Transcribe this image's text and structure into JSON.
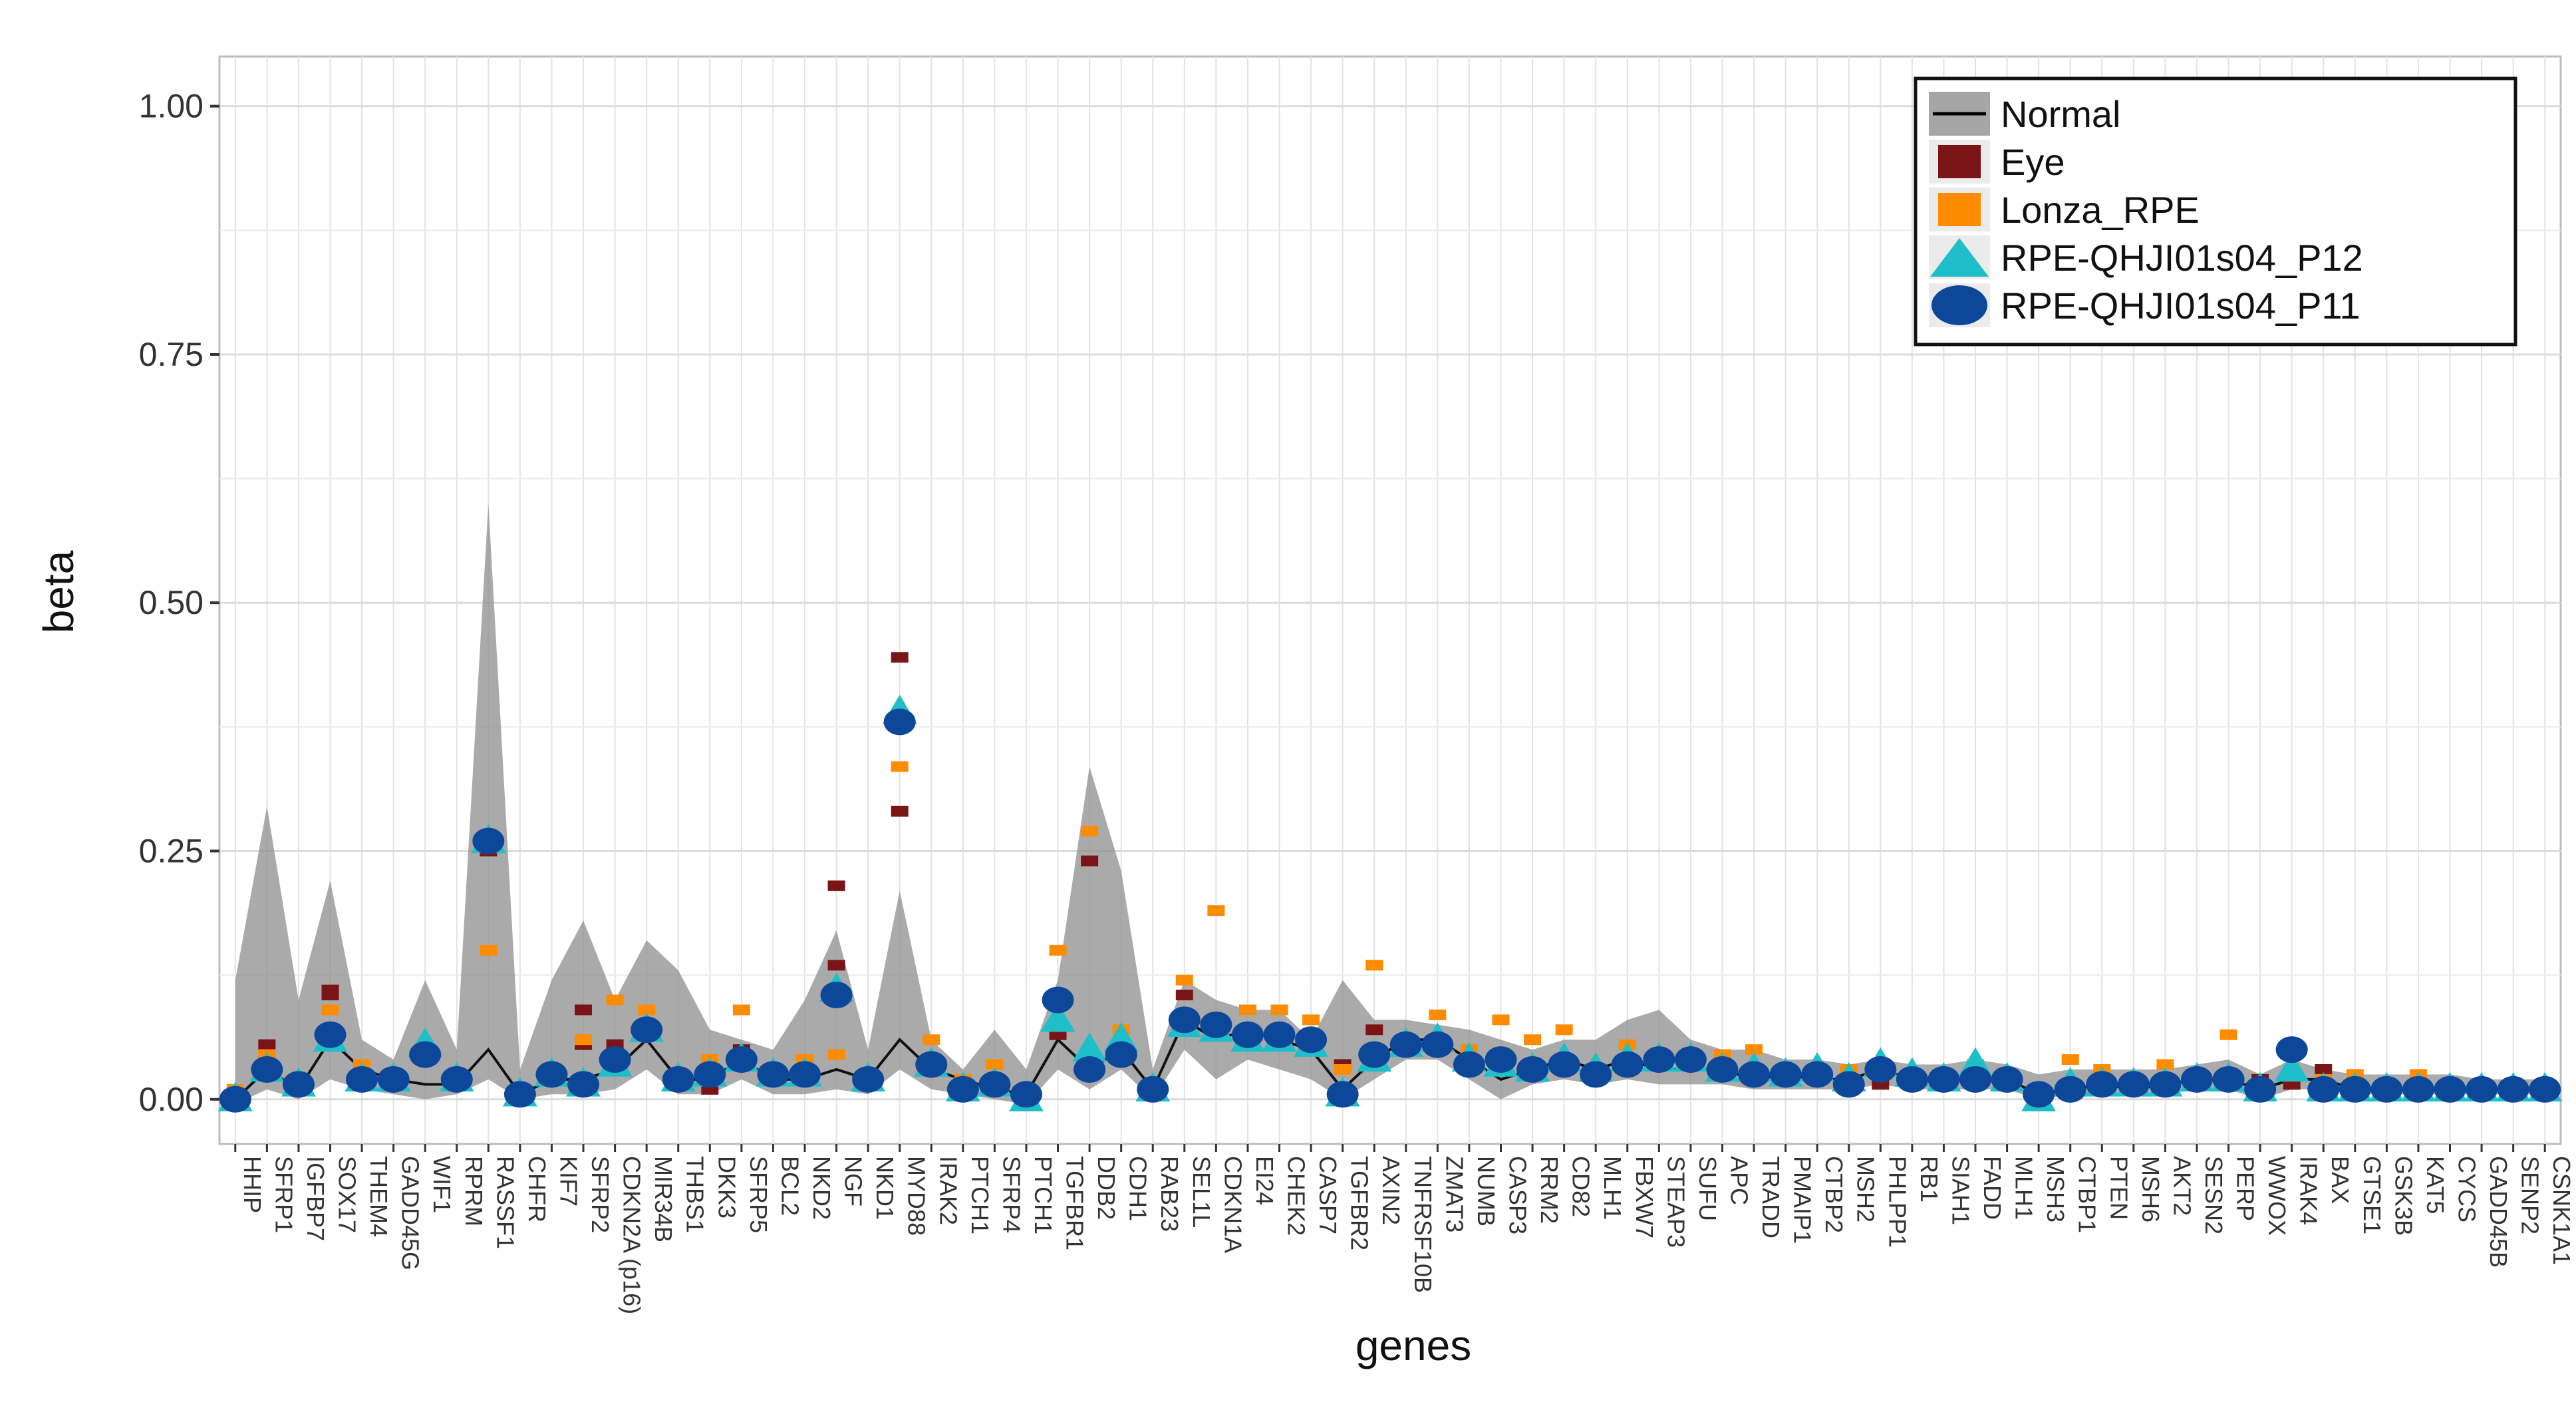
{
  "chart_data": {
    "type": "scatter",
    "title": "",
    "xlabel": "genes",
    "ylabel": "beta",
    "ylim": [
      -0.045,
      1.05
    ],
    "yticks": [
      0.0,
      0.25,
      0.5,
      0.75,
      1.0
    ],
    "ytick_labels": [
      "0.00",
      "0.25",
      "0.50",
      "0.75",
      "1.00"
    ],
    "grid": true,
    "legend_position": "top-right",
    "categories": [
      "HHIP",
      "SFRP1",
      "IGFBP7",
      "SOX17",
      "THEM4",
      "GADD45G",
      "WIF1",
      "RPRM",
      "RASSF1",
      "CHFR",
      "KIF7",
      "SFRP2",
      "CDKN2A (p16)",
      "MIR34B",
      "THBS1",
      "DKK3",
      "SFRP5",
      "BCL2",
      "NKD2",
      "NGF",
      "NKD1",
      "MYD88",
      "IRAK2",
      "PTCH1",
      "SFRP4",
      "PTCH1",
      "TGFBR1",
      "DDB2",
      "CDH1",
      "RAB23",
      "SEL1L",
      "CDKN1A",
      "EI24",
      "CHEK2",
      "CASP7",
      "TGFBR2",
      "AXIN2",
      "TNFRSF10B",
      "ZMAT3",
      "NUMB",
      "CASP3",
      "RRM2",
      "CD82",
      "MLH1",
      "FBXW7",
      "STEAP3",
      "SUFU",
      "APC",
      "TRADD",
      "PMAIP1",
      "CTBP2",
      "MSH2",
      "PHLPP1",
      "RB1",
      "SIAH1",
      "FADD",
      "MLH1",
      "MSH3",
      "CTBP1",
      "PTEN",
      "MSH6",
      "AKT2",
      "SESN2",
      "PERP",
      "WWOX",
      "IRAK4",
      "BAX",
      "GTSE1",
      "GSK3B",
      "KAT5",
      "CYCS",
      "GADD45B",
      "SENP2",
      "CSNK1A1"
    ],
    "normal_band": {
      "name": "Normal",
      "line": [
        0.0,
        0.03,
        0.01,
        0.06,
        0.03,
        0.02,
        0.015,
        0.015,
        0.05,
        0.005,
        0.02,
        0.02,
        0.03,
        0.06,
        0.02,
        0.02,
        0.04,
        0.02,
        0.02,
        0.03,
        0.02,
        0.06,
        0.03,
        0.02,
        0.01,
        0.005,
        0.06,
        0.03,
        0.05,
        0.01,
        0.08,
        0.06,
        0.07,
        0.06,
        0.05,
        0.01,
        0.04,
        0.06,
        0.06,
        0.04,
        0.02,
        0.03,
        0.04,
        0.03,
        0.04,
        0.03,
        0.03,
        0.03,
        0.02,
        0.025,
        0.02,
        0.02,
        0.03,
        0.02,
        0.02,
        0.02,
        0.02,
        0.005,
        0.01,
        0.015,
        0.01,
        0.015,
        0.02,
        0.02,
        0.01,
        0.02,
        0.02,
        0.01,
        0.01,
        0.01,
        0.01,
        0.01,
        0.01,
        0.01
      ],
      "lower": [
        -0.005,
        0.01,
        0.0,
        0.02,
        0.01,
        0.005,
        0.0,
        0.005,
        0.02,
        0.0,
        0.005,
        0.005,
        0.01,
        0.03,
        0.005,
        0.005,
        0.02,
        0.005,
        0.005,
        0.01,
        0.005,
        0.03,
        0.01,
        0.005,
        0.0,
        -0.005,
        0.03,
        0.01,
        0.03,
        0.0,
        0.05,
        0.02,
        0.04,
        0.03,
        0.02,
        0.0,
        0.02,
        0.04,
        0.04,
        0.02,
        0.0,
        0.015,
        0.02,
        0.015,
        0.02,
        0.015,
        0.015,
        0.015,
        0.01,
        0.01,
        0.01,
        0.01,
        0.015,
        0.01,
        0.01,
        0.01,
        0.01,
        0.0,
        0.005,
        0.005,
        0.005,
        0.005,
        0.01,
        0.01,
        0.0,
        0.01,
        0.01,
        0.005,
        0.005,
        0.005,
        0.005,
        0.005,
        0.005,
        0.005
      ],
      "upper": [
        0.12,
        0.295,
        0.1,
        0.22,
        0.06,
        0.04,
        0.12,
        0.05,
        0.6,
        0.03,
        0.12,
        0.18,
        0.1,
        0.16,
        0.13,
        0.07,
        0.06,
        0.05,
        0.1,
        0.17,
        0.05,
        0.21,
        0.06,
        0.03,
        0.07,
        0.03,
        0.12,
        0.335,
        0.23,
        0.03,
        0.12,
        0.1,
        0.09,
        0.09,
        0.06,
        0.12,
        0.08,
        0.08,
        0.075,
        0.07,
        0.06,
        0.05,
        0.06,
        0.06,
        0.08,
        0.09,
        0.06,
        0.05,
        0.05,
        0.04,
        0.04,
        0.035,
        0.04,
        0.035,
        0.035,
        0.04,
        0.035,
        0.025,
        0.03,
        0.03,
        0.03,
        0.03,
        0.035,
        0.04,
        0.025,
        0.04,
        0.03,
        0.025,
        0.025,
        0.025,
        0.025,
        0.02,
        0.02,
        0.02
      ]
    },
    "series": [
      {
        "name": "Eye",
        "shape": "square",
        "color": "#7b1416",
        "points": [
          [
            1,
            0.055
          ],
          [
            3,
            0.11
          ],
          [
            3,
            0.105
          ],
          [
            8,
            0.265
          ],
          [
            8,
            0.25
          ],
          [
            11,
            0.09
          ],
          [
            11,
            0.055
          ],
          [
            12,
            0.055
          ],
          [
            15,
            0.01
          ],
          [
            16,
            0.05
          ],
          [
            19,
            0.215
          ],
          [
            19,
            0.135
          ],
          [
            21,
            0.445
          ],
          [
            21,
            0.29
          ],
          [
            26,
            0.065
          ],
          [
            27,
            0.24
          ],
          [
            30,
            0.105
          ],
          [
            35,
            0.035
          ],
          [
            36,
            0.07
          ],
          [
            45,
            0.035
          ],
          [
            52,
            0.015
          ],
          [
            64,
            0.02
          ],
          [
            65,
            0.015
          ],
          [
            66,
            0.03
          ]
        ]
      },
      {
        "name": "Lonza_RPE",
        "shape": "square",
        "color": "#ff8c00",
        "points": [
          [
            0,
            0.01
          ],
          [
            1,
            0.045
          ],
          [
            2,
            0.01
          ],
          [
            3,
            0.09
          ],
          [
            4,
            0.035
          ],
          [
            8,
            0.15
          ],
          [
            11,
            0.06
          ],
          [
            12,
            0.1
          ],
          [
            13,
            0.09
          ],
          [
            15,
            0.04
          ],
          [
            16,
            0.09
          ],
          [
            18,
            0.04
          ],
          [
            19,
            0.045
          ],
          [
            21,
            0.335
          ],
          [
            22,
            0.06
          ],
          [
            23,
            0.02
          ],
          [
            24,
            0.035
          ],
          [
            26,
            0.15
          ],
          [
            27,
            0.27
          ],
          [
            28,
            0.07
          ],
          [
            30,
            0.12
          ],
          [
            31,
            0.19
          ],
          [
            32,
            0.09
          ],
          [
            33,
            0.09
          ],
          [
            34,
            0.08
          ],
          [
            35,
            0.03
          ],
          [
            36,
            0.135
          ],
          [
            38,
            0.085
          ],
          [
            39,
            0.05
          ],
          [
            40,
            0.08
          ],
          [
            41,
            0.06
          ],
          [
            42,
            0.07
          ],
          [
            44,
            0.055
          ],
          [
            47,
            0.045
          ],
          [
            48,
            0.05
          ],
          [
            51,
            0.03
          ],
          [
            55,
            0.035
          ],
          [
            58,
            0.04
          ],
          [
            59,
            0.03
          ],
          [
            61,
            0.035
          ],
          [
            63,
            0.065
          ],
          [
            66,
            0.02
          ],
          [
            67,
            0.025
          ],
          [
            69,
            0.025
          ],
          [
            71,
            0.015
          ],
          [
            72,
            0.015
          ]
        ]
      },
      {
        "name": "RPE-QHJI01s04_P12",
        "shape": "triangle",
        "color": "#1ebfc8",
        "points": [
          [
            0,
            0.0
          ],
          [
            1,
            0.03
          ],
          [
            2,
            0.015
          ],
          [
            3,
            0.06
          ],
          [
            4,
            0.02
          ],
          [
            5,
            0.02
          ],
          [
            6,
            0.055
          ],
          [
            7,
            0.02
          ],
          [
            8,
            0.26
          ],
          [
            9,
            0.005
          ],
          [
            10,
            0.025
          ],
          [
            11,
            0.015
          ],
          [
            12,
            0.035
          ],
          [
            13,
            0.07
          ],
          [
            14,
            0.02
          ],
          [
            15,
            0.025
          ],
          [
            16,
            0.04
          ],
          [
            17,
            0.025
          ],
          [
            18,
            0.025
          ],
          [
            19,
            0.11
          ],
          [
            20,
            0.02
          ],
          [
            21,
            0.39
          ],
          [
            22,
            0.035
          ],
          [
            23,
            0.01
          ],
          [
            24,
            0.015
          ],
          [
            25,
            0.0
          ],
          [
            26,
            0.08
          ],
          [
            27,
            0.05
          ],
          [
            28,
            0.06
          ],
          [
            29,
            0.01
          ],
          [
            30,
            0.075
          ],
          [
            31,
            0.07
          ],
          [
            32,
            0.06
          ],
          [
            33,
            0.06
          ],
          [
            34,
            0.055
          ],
          [
            35,
            0.005
          ],
          [
            36,
            0.04
          ],
          [
            37,
            0.055
          ],
          [
            38,
            0.06
          ],
          [
            39,
            0.04
          ],
          [
            40,
            0.035
          ],
          [
            41,
            0.03
          ],
          [
            42,
            0.04
          ],
          [
            43,
            0.03
          ],
          [
            44,
            0.04
          ],
          [
            45,
            0.04
          ],
          [
            46,
            0.04
          ],
          [
            47,
            0.03
          ],
          [
            48,
            0.03
          ],
          [
            49,
            0.025
          ],
          [
            50,
            0.03
          ],
          [
            51,
            0.02
          ],
          [
            52,
            0.035
          ],
          [
            53,
            0.025
          ],
          [
            54,
            0.02
          ],
          [
            55,
            0.035
          ],
          [
            56,
            0.02
          ],
          [
            57,
            0.0
          ],
          [
            58,
            0.015
          ],
          [
            59,
            0.015
          ],
          [
            60,
            0.015
          ],
          [
            61,
            0.015
          ],
          [
            62,
            0.02
          ],
          [
            63,
            0.02
          ],
          [
            64,
            0.01
          ],
          [
            65,
            0.03
          ],
          [
            66,
            0.01
          ],
          [
            67,
            0.01
          ],
          [
            68,
            0.01
          ],
          [
            69,
            0.01
          ],
          [
            70,
            0.01
          ],
          [
            71,
            0.01
          ],
          [
            72,
            0.01
          ],
          [
            73,
            0.01
          ]
        ]
      },
      {
        "name": "RPE-QHJI01s04_P11",
        "shape": "circle",
        "color": "#0c4799",
        "points": [
          [
            0,
            0.0
          ],
          [
            1,
            0.03
          ],
          [
            2,
            0.015
          ],
          [
            3,
            0.065
          ],
          [
            4,
            0.02
          ],
          [
            5,
            0.02
          ],
          [
            6,
            0.045
          ],
          [
            7,
            0.02
          ],
          [
            8,
            0.26
          ],
          [
            9,
            0.005
          ],
          [
            10,
            0.025
          ],
          [
            11,
            0.015
          ],
          [
            12,
            0.04
          ],
          [
            13,
            0.07
          ],
          [
            14,
            0.02
          ],
          [
            15,
            0.025
          ],
          [
            16,
            0.04
          ],
          [
            17,
            0.025
          ],
          [
            18,
            0.025
          ],
          [
            19,
            0.105
          ],
          [
            20,
            0.02
          ],
          [
            21,
            0.38
          ],
          [
            22,
            0.035
          ],
          [
            23,
            0.01
          ],
          [
            24,
            0.015
          ],
          [
            25,
            0.005
          ],
          [
            26,
            0.1
          ],
          [
            27,
            0.03
          ],
          [
            28,
            0.045
          ],
          [
            29,
            0.01
          ],
          [
            30,
            0.08
          ],
          [
            31,
            0.075
          ],
          [
            32,
            0.065
          ],
          [
            33,
            0.065
          ],
          [
            34,
            0.06
          ],
          [
            35,
            0.005
          ],
          [
            36,
            0.045
          ],
          [
            37,
            0.055
          ],
          [
            38,
            0.055
          ],
          [
            39,
            0.035
          ],
          [
            40,
            0.04
          ],
          [
            41,
            0.03
          ],
          [
            42,
            0.035
          ],
          [
            43,
            0.025
          ],
          [
            44,
            0.035
          ],
          [
            45,
            0.04
          ],
          [
            46,
            0.04
          ],
          [
            47,
            0.03
          ],
          [
            48,
            0.025
          ],
          [
            49,
            0.025
          ],
          [
            50,
            0.025
          ],
          [
            51,
            0.015
          ],
          [
            52,
            0.03
          ],
          [
            53,
            0.02
          ],
          [
            54,
            0.02
          ],
          [
            55,
            0.02
          ],
          [
            56,
            0.02
          ],
          [
            57,
            0.005
          ],
          [
            58,
            0.01
          ],
          [
            59,
            0.015
          ],
          [
            60,
            0.015
          ],
          [
            61,
            0.015
          ],
          [
            62,
            0.02
          ],
          [
            63,
            0.02
          ],
          [
            64,
            0.01
          ],
          [
            65,
            0.05
          ],
          [
            66,
            0.01
          ],
          [
            67,
            0.01
          ],
          [
            68,
            0.01
          ],
          [
            69,
            0.01
          ],
          [
            70,
            0.01
          ],
          [
            71,
            0.01
          ],
          [
            72,
            0.01
          ],
          [
            73,
            0.01
          ]
        ]
      }
    ],
    "legend": [
      {
        "label": "Normal",
        "kind": "band-line",
        "fill": "#a6a6a6",
        "color": "#000000"
      },
      {
        "label": "Eye",
        "kind": "square",
        "color": "#7b1416"
      },
      {
        "label": "Lonza_RPE",
        "kind": "square",
        "color": "#ff8c00"
      },
      {
        "label": "RPE-QHJI01s04_P12",
        "kind": "triangle",
        "color": "#1ebfc8"
      },
      {
        "label": "RPE-QHJI01s04_P11",
        "kind": "circle",
        "color": "#0c4799"
      }
    ]
  }
}
